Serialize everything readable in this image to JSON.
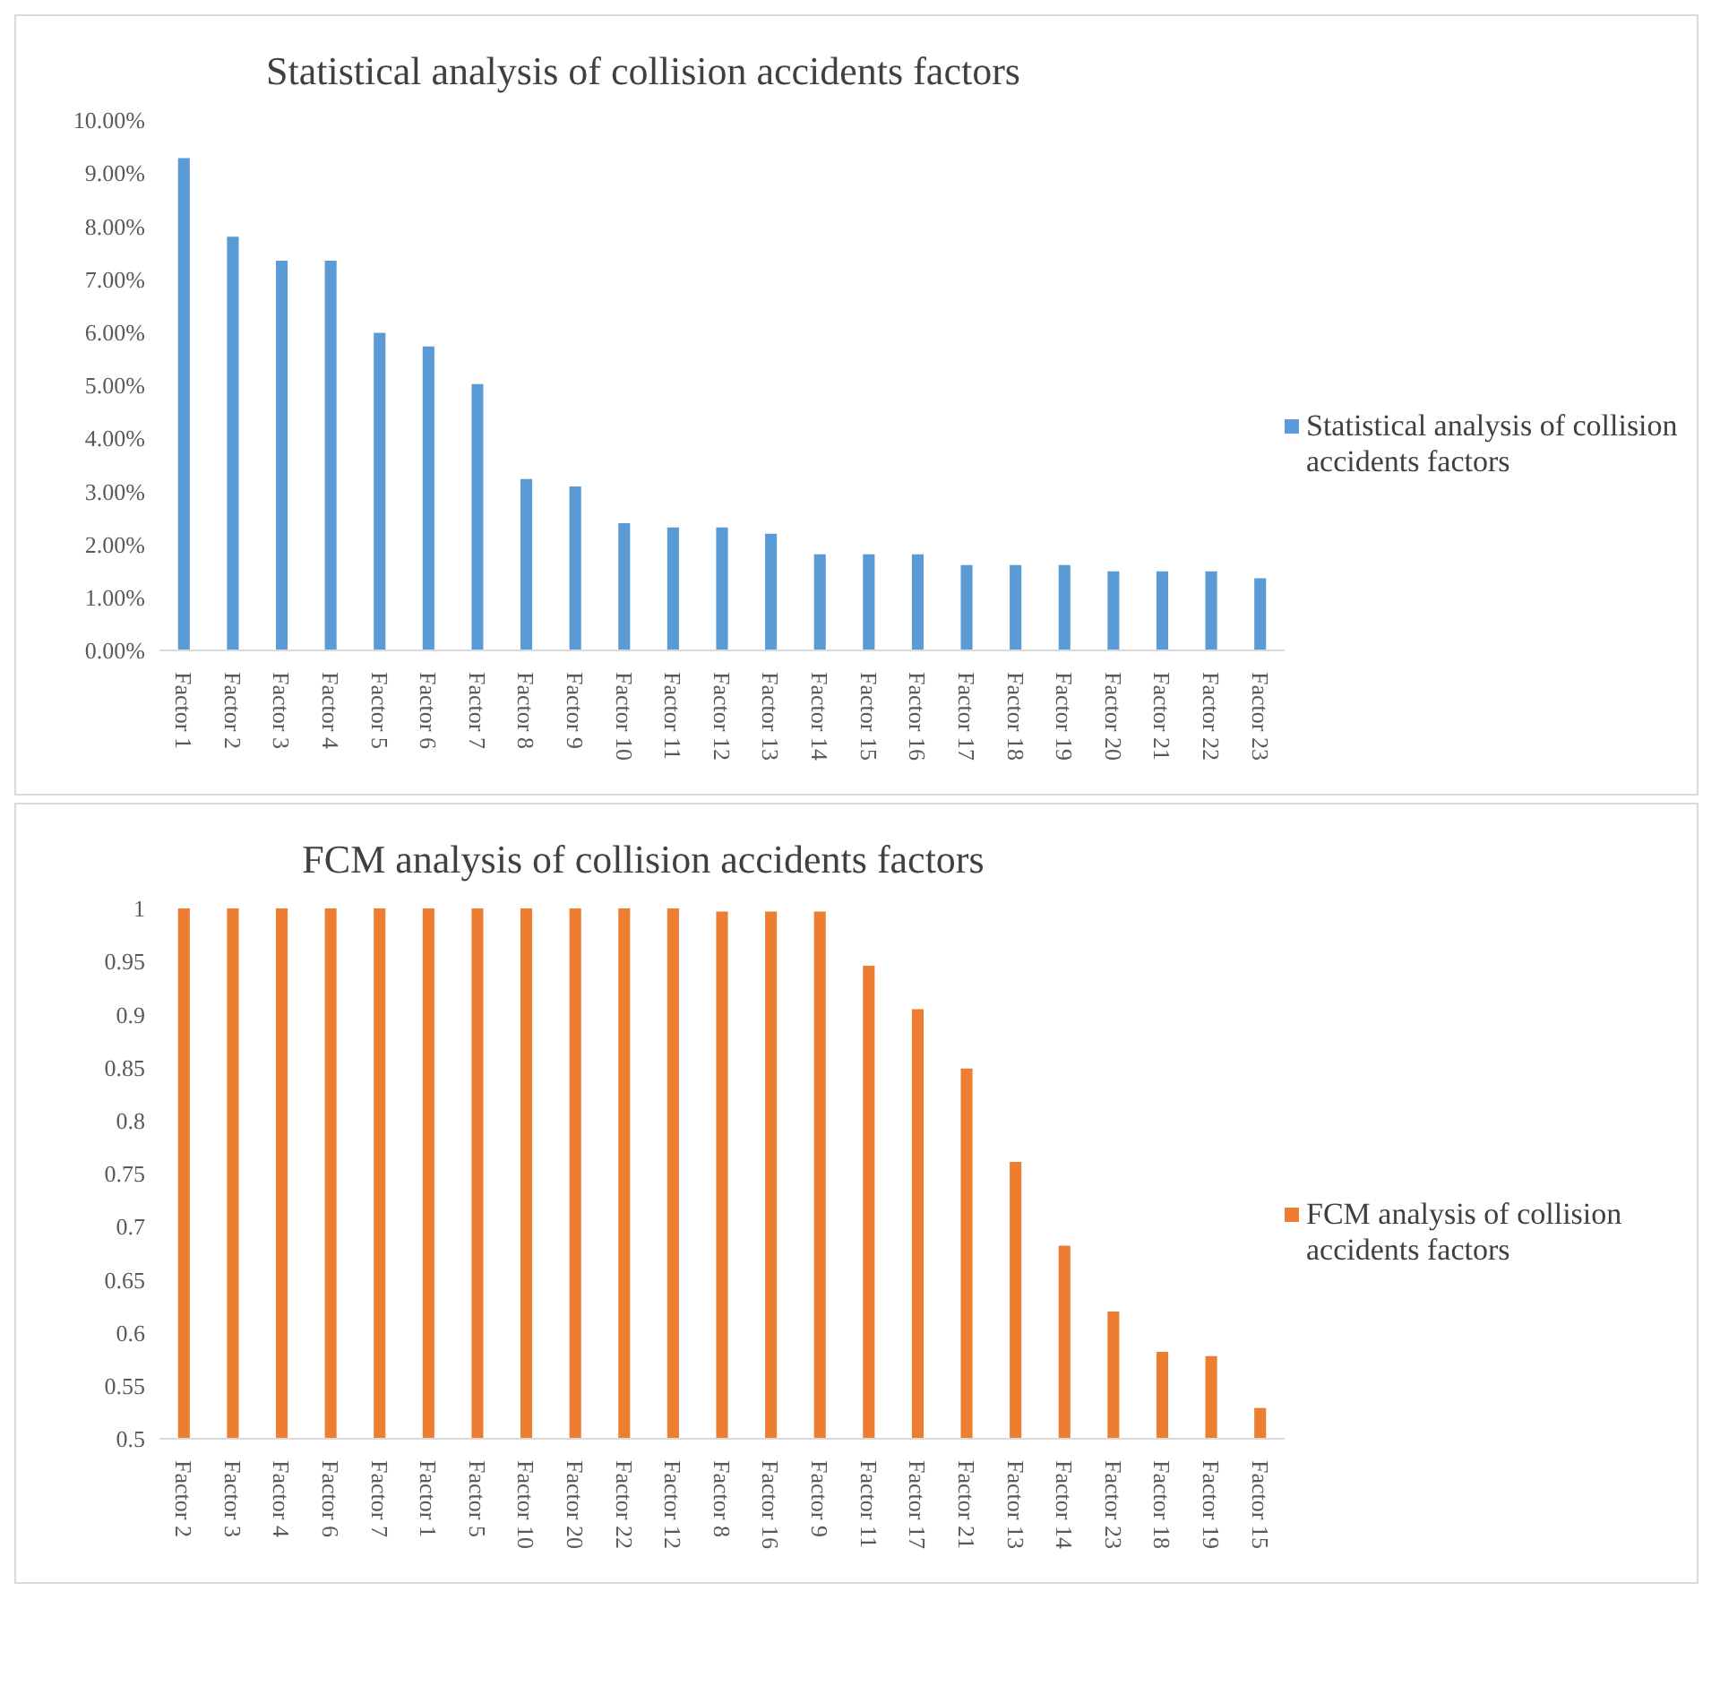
{
  "chart_data": [
    {
      "type": "bar",
      "title": "Statistical analysis of collision accidents factors",
      "categories": [
        "Factor 1",
        "Factor 2",
        "Factor 3",
        "Factor 4",
        "Factor 5",
        "Factor 6",
        "Factor 7",
        "Factor 8",
        "Factor 9",
        "Factor 10",
        "Factor 11",
        "Factor 12",
        "Factor 13",
        "Factor 14",
        "Factor 15",
        "Factor 16",
        "Factor 17",
        "Factor 18",
        "Factor 19",
        "Factor 20",
        "Factor 21",
        "Factor 22",
        "Factor 23"
      ],
      "series": [
        {
          "name": "Statistical analysis of collision accidents factors",
          "color": "#5b9bd5",
          "values": [
            9.28,
            7.8,
            7.35,
            7.35,
            5.99,
            5.73,
            5.02,
            3.23,
            3.09,
            2.4,
            2.32,
            2.32,
            2.2,
            1.81,
            1.81,
            1.81,
            1.61,
            1.61,
            1.61,
            1.49,
            1.49,
            1.49,
            1.36
          ]
        }
      ],
      "ylim": [
        0,
        10
      ],
      "yticks": [
        {
          "value": 0,
          "label": "0.00%"
        },
        {
          "value": 1,
          "label": "1.00%"
        },
        {
          "value": 2,
          "label": "2.00%"
        },
        {
          "value": 3,
          "label": "3.00%"
        },
        {
          "value": 4,
          "label": "4.00%"
        },
        {
          "value": 5,
          "label": "5.00%"
        },
        {
          "value": 6,
          "label": "6.00%"
        },
        {
          "value": 7,
          "label": "7.00%"
        },
        {
          "value": 8,
          "label": "8.00%"
        },
        {
          "value": 9,
          "label": "9.00%"
        },
        {
          "value": 10,
          "label": "10.00%"
        }
      ],
      "grid": false,
      "legend": "right"
    },
    {
      "type": "bar",
      "title": "FCM analysis of collision accidents factors",
      "categories": [
        "Factor 2",
        "Factor 3",
        "Factor 4",
        "Factor 6",
        "Factor 7",
        "Factor 1",
        "Factor 5",
        "Factor 10",
        "Factor 20",
        "Factor 22",
        "Factor 12",
        "Factor 8",
        "Factor 16",
        "Factor 9",
        "Factor 11",
        "Factor 17",
        "Factor 21",
        "Factor 13",
        "Factor 14",
        "Factor 23",
        "Factor 18",
        "Factor 19",
        "Factor 15"
      ],
      "series": [
        {
          "name": "FCM analysis of collision accidents factors",
          "color": "#ed7d31",
          "values": [
            1,
            1,
            1,
            1,
            1,
            1,
            1,
            1,
            1,
            1,
            1,
            0.997,
            0.997,
            0.997,
            0.946,
            0.905,
            0.849,
            0.761,
            0.682,
            0.62,
            0.582,
            0.578,
            0.529
          ]
        }
      ],
      "ylim": [
        0.5,
        1
      ],
      "yticks": [
        0.5,
        0.55,
        0.6,
        0.65,
        0.7,
        0.75,
        0.8,
        0.85,
        0.9,
        0.95,
        1
      ],
      "grid": false,
      "legend": "right"
    }
  ]
}
